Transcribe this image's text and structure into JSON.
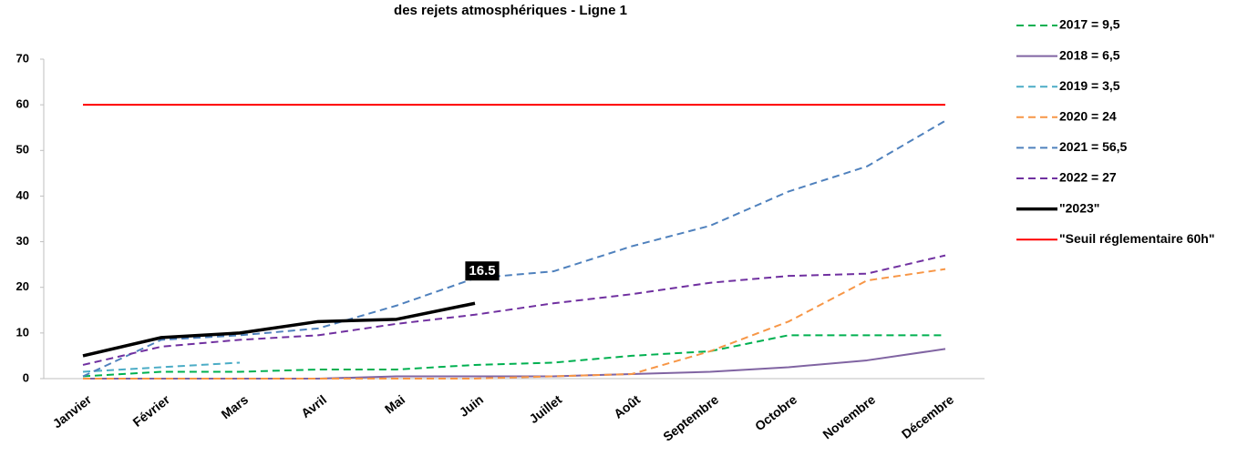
{
  "chart_data": {
    "type": "line",
    "title": "des rejets atmosphériques - Ligne  1",
    "categories": [
      "Janvier",
      "Février",
      "Mars",
      "Avril",
      "Mai",
      "Juin",
      "Juillet",
      "Août",
      "Septembre",
      "Octobre",
      "Novembre",
      "Décembre"
    ],
    "ylim": [
      0,
      70
    ],
    "yticks": [
      0,
      10,
      20,
      30,
      40,
      50,
      60,
      70
    ],
    "grid": false,
    "legend": "right",
    "series": [
      {
        "name": "2017  = 9,5",
        "color": "#00b050",
        "dash": true,
        "values": [
          0.5,
          1.5,
          1.5,
          2,
          2,
          3,
          3.5,
          5,
          6,
          9.5,
          9.5,
          9.5
        ]
      },
      {
        "name": "2018 = 6,5",
        "color": "#8064a2",
        "dash": false,
        "values": [
          0,
          0,
          0,
          0,
          0.5,
          0.5,
          0.5,
          1,
          1.5,
          2.5,
          4,
          6.5
        ]
      },
      {
        "name": "2019 = 3,5",
        "color": "#4bacc6",
        "dash": true,
        "values": [
          1.5,
          2.5,
          3.5,
          null,
          null,
          null,
          null,
          null,
          null,
          null,
          null,
          null
        ]
      },
      {
        "name": "2020 = 24",
        "color": "#f79646",
        "dash": true,
        "values": [
          0,
          0,
          0,
          0,
          0,
          0,
          0.5,
          1,
          6,
          12.5,
          21.5,
          24
        ]
      },
      {
        "name": "2021 = 56,5",
        "color": "#4f81bd",
        "dash": true,
        "values": [
          0.5,
          8.5,
          9.5,
          11,
          16,
          22,
          23.5,
          29,
          33.5,
          41,
          46.5,
          56.5
        ]
      },
      {
        "name": "2022 = 27",
        "color": "#7030a0",
        "dash": true,
        "values": [
          3,
          7,
          8.5,
          9.5,
          12,
          14,
          16.5,
          18.5,
          21,
          22.5,
          23,
          27
        ]
      },
      {
        "name": "\"2023\"",
        "color": "#000000",
        "dash": false,
        "width": 3.5,
        "values": [
          5,
          9,
          10,
          12.5,
          13,
          16.5,
          null,
          null,
          null,
          null,
          null,
          null
        ],
        "value_labels": [
          null,
          null,
          null,
          null,
          null,
          "16.5",
          null,
          null,
          null,
          null,
          null,
          null
        ]
      },
      {
        "name": "\"Seuil réglementaire 60h\"",
        "color": "#ff0000",
        "dash": false,
        "values": [
          60,
          60,
          60,
          60,
          60,
          60,
          60,
          60,
          60,
          60,
          60,
          60
        ]
      }
    ]
  }
}
